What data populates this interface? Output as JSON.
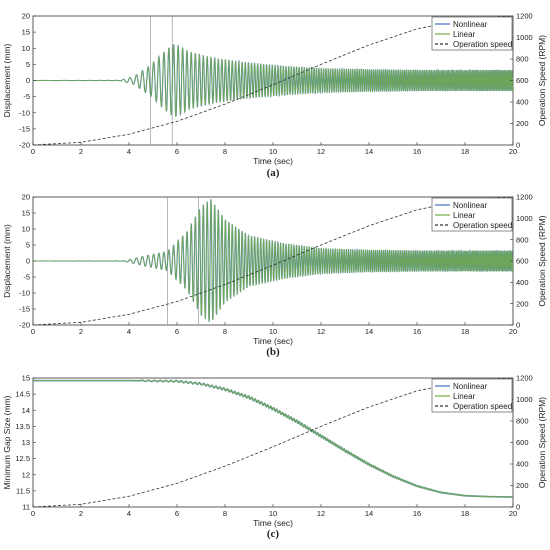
{
  "chart_data": [
    {
      "type": "line",
      "panel_label": "(a)",
      "xlabel": "Time (sec)",
      "ylabel": "Displacement (mm)",
      "y2label": "Operation Speed (RPM)",
      "xlim": [
        0,
        20
      ],
      "ylim": [
        -20,
        20
      ],
      "y2lim": [
        0,
        1200
      ],
      "xticks": [
        0,
        2,
        4,
        6,
        8,
        10,
        12,
        14,
        16,
        18,
        20
      ],
      "yticks": [
        -20,
        -15,
        -10,
        -5,
        0,
        5,
        10,
        15,
        20
      ],
      "y2ticks": [
        0,
        200,
        400,
        600,
        800,
        1000,
        1200
      ],
      "legend": [
        "Nonlinear",
        "Linear",
        "Operation speed"
      ],
      "legend_position": "top-right",
      "vlines_x": [
        4.9,
        5.8
      ],
      "series": [
        {
          "name": "Nonlinear",
          "color": "#4472c4",
          "envelope": {
            "x": [
              0,
              3.6,
              4.2,
              4.9,
              5.4,
              5.9,
              6.5,
              7.5,
              9.0,
              10.5,
              12,
              14,
              16,
              18,
              20
            ],
            "amp": [
              0,
              0.05,
              1.2,
              4.8,
              8.5,
              11.5,
              9,
              7,
              5.5,
              4.5,
              3.8,
              3.5,
              3.3,
              3.3,
              3.3
            ]
          }
        },
        {
          "name": "Linear",
          "color": "#70ad47",
          "envelope": {
            "x": [
              0,
              3.6,
              4.2,
              4.9,
              5.4,
              5.9,
              6.5,
              7.5,
              9.0,
              10.5,
              12,
              14,
              16,
              18,
              20
            ],
            "amp": [
              0,
              0.05,
              1.2,
              4.8,
              8.5,
              11.5,
              9,
              7,
              5.5,
              4.5,
              3.8,
              3.5,
              3.3,
              3.3,
              3.3
            ]
          }
        },
        {
          "name": "Operation speed",
          "color": "#333333",
          "x": [
            0,
            2,
            4,
            6,
            8,
            10,
            12,
            14,
            16,
            18,
            20
          ],
          "y": [
            0,
            25,
            100,
            220,
            380,
            560,
            750,
            930,
            1080,
            1170,
            1200
          ]
        }
      ]
    },
    {
      "type": "line",
      "panel_label": "(b)",
      "xlabel": "Time (sec)",
      "ylabel": "Displacement (mm)",
      "y2label": "Operation Speed (RPM)",
      "xlim": [
        0,
        20
      ],
      "ylim": [
        -20,
        20
      ],
      "y2lim": [
        0,
        1200
      ],
      "xticks": [
        0,
        2,
        4,
        6,
        8,
        10,
        12,
        14,
        16,
        18,
        20
      ],
      "yticks": [
        -20,
        -15,
        -10,
        -5,
        0,
        5,
        10,
        15,
        20
      ],
      "y2ticks": [
        0,
        200,
        400,
        600,
        800,
        1000,
        1200
      ],
      "legend": [
        "Nonlinear",
        "Linear",
        "Operation speed"
      ],
      "legend_position": "top-right",
      "vlines_x": [
        5.6,
        6.9
      ],
      "series": [
        {
          "name": "Nonlinear",
          "color": "#4472c4",
          "envelope": {
            "x": [
              0,
              3.8,
              4.6,
              5.6,
              6.4,
              7.0,
              7.4,
              8.0,
              9.0,
              10.5,
              12,
              14,
              16,
              18,
              20
            ],
            "amp": [
              0,
              0.05,
              1.5,
              3,
              9,
              17,
              19.5,
              13,
              8,
              5.5,
              4,
              3.5,
              3.3,
              3.3,
              3.3
            ]
          }
        },
        {
          "name": "Linear",
          "color": "#70ad47",
          "envelope": {
            "x": [
              0,
              3.8,
              4.6,
              5.6,
              6.4,
              7.0,
              7.4,
              8.0,
              9.0,
              10.5,
              12,
              14,
              16,
              18,
              20
            ],
            "amp": [
              0,
              0.05,
              1.5,
              3,
              9,
              17,
              19.5,
              13,
              8,
              5.5,
              4,
              3.5,
              3.3,
              3.3,
              3.3
            ]
          }
        },
        {
          "name": "Operation speed",
          "color": "#333333",
          "x": [
            0,
            2,
            4,
            6,
            8,
            10,
            12,
            14,
            16,
            18,
            20
          ],
          "y": [
            0,
            25,
            100,
            220,
            380,
            560,
            750,
            930,
            1080,
            1170,
            1200
          ]
        }
      ]
    },
    {
      "type": "line",
      "panel_label": "(c)",
      "xlabel": "Time (sec)",
      "ylabel": "Minimum Gap Size (mm)",
      "y2label": "Operation Speed (RPM)",
      "xlim": [
        0,
        20
      ],
      "ylim": [
        11,
        15
      ],
      "y2lim": [
        0,
        1200
      ],
      "xticks": [
        0,
        2,
        4,
        6,
        8,
        10,
        12,
        14,
        16,
        18,
        20
      ],
      "yticks": [
        11,
        11.5,
        12,
        12.5,
        13,
        13.5,
        14,
        14.5,
        15
      ],
      "y2ticks": [
        0,
        200,
        400,
        600,
        800,
        1000,
        1200
      ],
      "legend": [
        "Nonlinear",
        "Linear",
        "Operation speed"
      ],
      "legend_position": "top-right",
      "series": [
        {
          "name": "Nonlinear",
          "color": "#4472c4",
          "x": [
            0,
            4,
            6,
            7,
            8,
            9,
            10,
            11,
            12,
            13,
            14,
            15,
            16,
            17,
            18,
            19,
            20
          ],
          "y": [
            14.92,
            14.92,
            14.9,
            14.82,
            14.65,
            14.4,
            14.05,
            13.65,
            13.2,
            12.75,
            12.32,
            11.95,
            11.65,
            11.45,
            11.35,
            11.32,
            11.31
          ]
        },
        {
          "name": "Linear",
          "color": "#70ad47",
          "x": [
            0,
            4,
            6,
            7,
            8,
            9,
            10,
            11,
            12,
            13,
            14,
            15,
            16,
            17,
            18,
            19,
            20
          ],
          "y": [
            14.92,
            14.92,
            14.9,
            14.82,
            14.65,
            14.4,
            14.05,
            13.65,
            13.2,
            12.75,
            12.32,
            11.95,
            11.65,
            11.45,
            11.35,
            11.32,
            11.31
          ]
        },
        {
          "name": "Operation speed",
          "color": "#333333",
          "x": [
            0,
            2,
            4,
            6,
            8,
            10,
            12,
            14,
            16,
            18,
            20
          ],
          "y": [
            0,
            25,
            100,
            220,
            380,
            560,
            750,
            930,
            1080,
            1170,
            1200
          ]
        }
      ]
    }
  ]
}
